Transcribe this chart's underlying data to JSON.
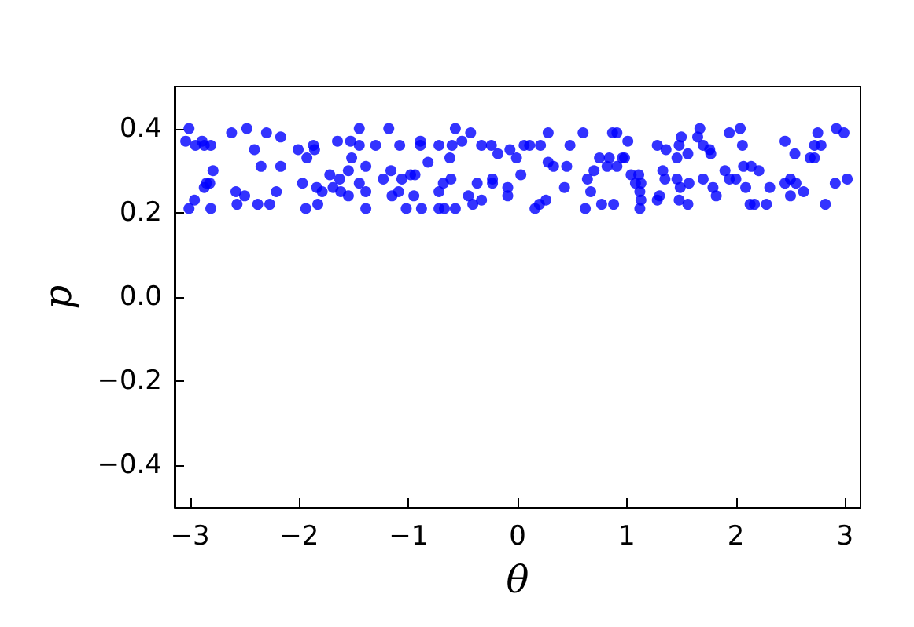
{
  "chart_data": {
    "type": "scatter",
    "xlabel": "θ",
    "ylabel": "p",
    "color": "#0000ff",
    "marker": "circle",
    "grid": false,
    "x": [
      -3.01,
      -3.04,
      -2.95,
      -2.89,
      -2.87,
      -2.81,
      -2.79,
      -2.85,
      -2.87,
      -2.82,
      -2.96,
      -3.01,
      -2.81,
      -2.62,
      -2.48,
      -2.41,
      -2.3,
      -2.17,
      -2.35,
      -2.17,
      -2.58,
      -2.57,
      -2.5,
      -2.38,
      -2.27,
      -2.21,
      -2.01,
      -1.93,
      -1.87,
      -1.86,
      -1.97,
      -1.94,
      -1.84,
      -1.79,
      -1.83,
      -1.65,
      -1.53,
      -1.45,
      -1.45,
      -1.3,
      -1.52,
      -1.39,
      -1.72,
      -1.63,
      -1.55,
      -1.69,
      -1.62,
      -1.55,
      -1.45,
      -1.39,
      -1.39,
      -1.23,
      -1.16,
      -1.18,
      -1.08,
      -1.09,
      -1.15,
      -0.89,
      -0.89,
      -0.72,
      -0.57,
      -0.51,
      -0.43,
      -0.6,
      -0.62,
      -0.82,
      -1.06,
      -0.98,
      -0.94,
      -0.95,
      -1.02,
      -0.88,
      -0.72,
      -0.68,
      -0.61,
      -0.72,
      -0.67,
      -0.57,
      -0.37,
      -0.45,
      -0.41,
      -0.33,
      -0.23,
      -0.23,
      -0.33,
      -0.24,
      -0.18,
      -0.09,
      -0.09,
      -0.07,
      -0.01,
      0.03,
      0.06,
      0.11,
      0.21,
      0.28,
      0.28,
      0.33,
      0.45,
      0.48,
      0.6,
      0.43,
      0.16,
      0.2,
      0.26,
      0.64,
      0.7,
      0.67,
      0.75,
      0.84,
      0.87,
      0.91,
      0.96,
      0.91,
      0.82,
      0.62,
      0.77,
      0.88,
      1.01,
      0.98,
      1.04,
      1.11,
      1.08,
      1.13,
      1.12,
      1.13,
      1.12,
      1.28,
      1.36,
      1.5,
      1.48,
      1.46,
      1.56,
      1.65,
      1.67,
      1.7,
      1.76,
      1.77,
      1.33,
      1.35,
      1.46,
      1.49,
      1.57,
      1.3,
      1.28,
      1.48,
      1.56,
      1.7,
      1.79,
      1.82,
      1.94,
      2.04,
      2.06,
      1.9,
      1.94,
      2.0,
      2.07,
      2.14,
      2.21,
      2.09,
      2.13,
      2.17,
      2.28,
      2.31,
      2.45,
      2.54,
      2.45,
      2.5,
      2.55,
      2.5,
      2.62,
      2.68,
      2.72,
      2.72,
      2.78,
      2.75,
      2.92,
      2.99,
      3.02,
      2.91,
      2.82
    ],
    "values": [
      0.4,
      0.37,
      0.36,
      0.37,
      0.36,
      0.36,
      0.3,
      0.27,
      0.26,
      0.27,
      0.23,
      0.21,
      0.21,
      0.39,
      0.4,
      0.35,
      0.39,
      0.38,
      0.31,
      0.31,
      0.25,
      0.22,
      0.24,
      0.22,
      0.22,
      0.25,
      0.35,
      0.33,
      0.36,
      0.35,
      0.27,
      0.21,
      0.26,
      0.25,
      0.22,
      0.37,
      0.37,
      0.4,
      0.36,
      0.36,
      0.33,
      0.31,
      0.29,
      0.28,
      0.3,
      0.26,
      0.25,
      0.24,
      0.27,
      0.25,
      0.21,
      0.28,
      0.3,
      0.4,
      0.36,
      0.25,
      0.24,
      0.37,
      0.36,
      0.36,
      0.4,
      0.37,
      0.39,
      0.36,
      0.33,
      0.32,
      0.28,
      0.29,
      0.29,
      0.24,
      0.21,
      0.21,
      0.25,
      0.27,
      0.28,
      0.21,
      0.21,
      0.21,
      0.27,
      0.24,
      0.22,
      0.23,
      0.28,
      0.27,
      0.36,
      0.36,
      0.34,
      0.26,
      0.24,
      0.35,
      0.33,
      0.29,
      0.36,
      0.36,
      0.36,
      0.39,
      0.32,
      0.31,
      0.31,
      0.36,
      0.39,
      0.26,
      0.21,
      0.22,
      0.23,
      0.28,
      0.3,
      0.25,
      0.33,
      0.33,
      0.39,
      0.39,
      0.33,
      0.31,
      0.31,
      0.21,
      0.22,
      0.22,
      0.37,
      0.33,
      0.29,
      0.29,
      0.27,
      0.27,
      0.25,
      0.23,
      0.21,
      0.36,
      0.35,
      0.38,
      0.36,
      0.33,
      0.34,
      0.38,
      0.4,
      0.36,
      0.35,
      0.34,
      0.3,
      0.28,
      0.28,
      0.26,
      0.27,
      0.24,
      0.23,
      0.23,
      0.22,
      0.28,
      0.26,
      0.24,
      0.39,
      0.4,
      0.36,
      0.3,
      0.28,
      0.28,
      0.31,
      0.31,
      0.3,
      0.26,
      0.22,
      0.22,
      0.22,
      0.26,
      0.37,
      0.34,
      0.27,
      0.28,
      0.27,
      0.24,
      0.25,
      0.33,
      0.33,
      0.36,
      0.36,
      0.39,
      0.4,
      0.39,
      0.28,
      0.27,
      0.22
    ],
    "xlim": [
      -3.1416,
      3.1416
    ],
    "ylim": [
      -0.5,
      0.5
    ],
    "xticks": [
      {
        "value": -3,
        "label": "−3"
      },
      {
        "value": -2,
        "label": "−2"
      },
      {
        "value": -1,
        "label": "−1"
      },
      0,
      1,
      2,
      3
    ],
    "yticks": [
      {
        "value": -0.4,
        "label": "−0.4"
      },
      {
        "value": -0.2,
        "label": "−0.2"
      },
      {
        "value": 0,
        "label": "0.0"
      },
      0.2,
      0.4
    ]
  }
}
